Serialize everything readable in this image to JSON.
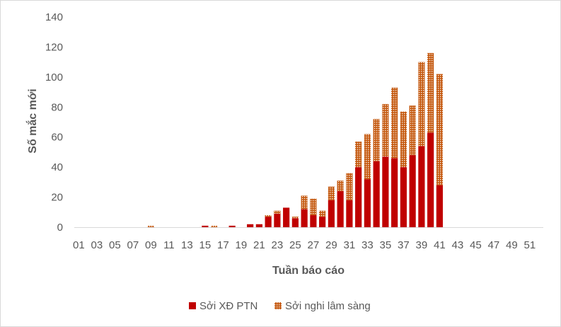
{
  "chart_data": {
    "type": "bar",
    "stacked": true,
    "xlabel": "Tuần báo cáo",
    "ylabel": "Số mắc mới",
    "ylim": [
      0,
      140
    ],
    "yticks": [
      0,
      20,
      40,
      60,
      80,
      100,
      120,
      140
    ],
    "grid": false,
    "legend_position": "bottom",
    "categories": [
      "01",
      "02",
      "03",
      "04",
      "05",
      "06",
      "07",
      "08",
      "09",
      "10",
      "11",
      "12",
      "13",
      "14",
      "15",
      "16",
      "17",
      "18",
      "19",
      "20",
      "21",
      "22",
      "23",
      "24",
      "25",
      "26",
      "27",
      "28",
      "29",
      "30",
      "31",
      "32",
      "33",
      "34",
      "35",
      "36",
      "37",
      "38",
      "39",
      "40",
      "41",
      "42",
      "43",
      "44",
      "45",
      "46",
      "47",
      "48",
      "49",
      "50",
      "51",
      "52"
    ],
    "series": [
      {
        "name": "Sởi XĐ PTN",
        "color": "#c00000",
        "pattern": "solid",
        "values": [
          0,
          0,
          0,
          0,
          0,
          0,
          0,
          0,
          0,
          0,
          0,
          0,
          0,
          0,
          1,
          0,
          0,
          1,
          0,
          2,
          2,
          7,
          9,
          13,
          6,
          12,
          8,
          7,
          18,
          24,
          18,
          40,
          32,
          44,
          47,
          46,
          40,
          48,
          54,
          63,
          28,
          0,
          0,
          0,
          0,
          0,
          0,
          0,
          0,
          0,
          0,
          0
        ]
      },
      {
        "name": "Sởi nghi lâm sàng",
        "color": "#c55a11",
        "pattern": "dotted",
        "values": [
          0,
          0,
          0,
          0,
          0,
          0,
          0,
          0,
          1,
          0,
          0,
          0,
          0,
          0,
          0,
          1,
          0,
          0,
          0,
          0,
          0,
          1,
          2,
          0,
          1,
          9,
          11,
          4,
          9,
          7,
          18,
          17,
          30,
          28,
          35,
          47,
          37,
          33,
          56,
          53,
          74,
          0,
          0,
          0,
          0,
          0,
          0,
          0,
          0,
          0,
          0,
          0
        ]
      }
    ],
    "xtick_labels": [
      "01",
      "03",
      "05",
      "07",
      "09",
      "11",
      "13",
      "15",
      "17",
      "19",
      "21",
      "23",
      "25",
      "27",
      "29",
      "31",
      "33",
      "35",
      "37",
      "39",
      "41",
      "43",
      "45",
      "47",
      "49",
      "51"
    ]
  }
}
